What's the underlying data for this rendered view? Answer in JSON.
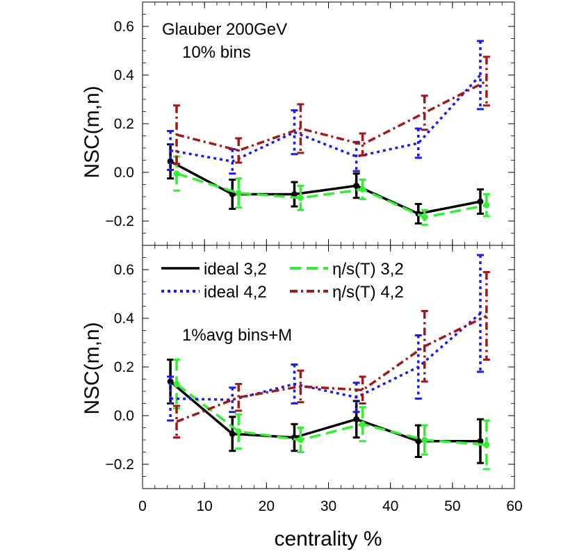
{
  "chart_data": [
    {
      "type": "line",
      "panel": "top",
      "annotation_lines": [
        "Glauber 200GeV",
        "10% bins"
      ],
      "ylabel": "NSC(m,n)",
      "xlabel": "",
      "xlim": [
        0,
        60
      ],
      "ylim": [
        -0.3,
        0.7
      ],
      "xticks": [
        0,
        10,
        20,
        30,
        40,
        50,
        60
      ],
      "yticks": [
        -0.2,
        0.0,
        0.2,
        0.4,
        0.6
      ],
      "ytick_labels": [
        "−0.2",
        "0.0",
        "0.2",
        "0.4",
        "0.6"
      ],
      "series": [
        {
          "name": "ideal 3,2",
          "style": "solid",
          "color": "#000000",
          "marker": true,
          "x": [
            4.5,
            14.5,
            24.5,
            34.5,
            44.5,
            54.5
          ],
          "y": [
            0.045,
            -0.09,
            -0.09,
            -0.055,
            -0.17,
            -0.12
          ],
          "err": [
            0.07,
            0.06,
            0.05,
            0.05,
            0.04,
            0.05
          ]
        },
        {
          "name": "η/s(T) 3,2",
          "style": "dashed",
          "color": "#33ee33",
          "marker": true,
          "x": [
            5.5,
            15.5,
            25.5,
            35.5,
            45.5,
            55.5
          ],
          "y": [
            -0.005,
            -0.085,
            -0.105,
            -0.07,
            -0.185,
            -0.135
          ],
          "err": [
            0.07,
            0.06,
            0.05,
            0.04,
            0.03,
            0.045
          ]
        },
        {
          "name": "ideal 4,2",
          "style": "dotted",
          "color": "#1a1aee",
          "marker": false,
          "x": [
            4.5,
            14.5,
            24.5,
            34.5,
            44.5,
            54.5
          ],
          "y": [
            0.09,
            0.045,
            0.165,
            0.065,
            0.12,
            0.4
          ],
          "err": [
            0.08,
            0.05,
            0.09,
            0.06,
            0.06,
            0.14
          ]
        },
        {
          "name": "η/s(T) 4,2",
          "style": "dashdot",
          "color": "#a01818",
          "marker": false,
          "x": [
            5.5,
            15.5,
            25.5,
            35.5,
            45.5,
            55.5
          ],
          "y": [
            0.155,
            0.09,
            0.18,
            0.115,
            0.245,
            0.375
          ],
          "err": [
            0.12,
            0.05,
            0.1,
            0.045,
            0.07,
            0.1
          ]
        }
      ]
    },
    {
      "type": "line",
      "panel": "bottom",
      "annotation_lines": [
        "1%avg bins+M"
      ],
      "ylabel": "NSC(m,n)",
      "xlabel": "centrality %",
      "xlim": [
        0,
        60
      ],
      "ylim": [
        -0.3,
        0.7
      ],
      "xticks": [
        0,
        10,
        20,
        30,
        40,
        50,
        60
      ],
      "xtick_labels": [
        "0",
        "10",
        "20",
        "30",
        "40",
        "50",
        "60"
      ],
      "yticks": [
        -0.2,
        0.0,
        0.2,
        0.4,
        0.6
      ],
      "ytick_labels": [
        "−0.2",
        "0.0",
        "0.2",
        "0.4",
        "0.6"
      ],
      "legend": [
        "ideal 3,2",
        "ideal 4,2",
        "η/s(T) 3,2",
        "η/s(T) 4,2"
      ],
      "series": [
        {
          "name": "ideal 3,2",
          "style": "solid",
          "color": "#000000",
          "marker": true,
          "x": [
            4.5,
            14.5,
            24.5,
            34.5,
            44.5,
            54.5
          ],
          "y": [
            0.14,
            -0.075,
            -0.09,
            -0.015,
            -0.105,
            -0.105
          ],
          "err": [
            0.09,
            0.07,
            0.055,
            0.075,
            0.065,
            0.09
          ]
        },
        {
          "name": "η/s(T) 3,2",
          "style": "dashed",
          "color": "#33ee33",
          "marker": true,
          "x": [
            5.5,
            15.5,
            25.5,
            35.5,
            45.5,
            55.5
          ],
          "y": [
            0.13,
            -0.065,
            -0.1,
            -0.035,
            -0.1,
            -0.12
          ],
          "err": [
            0.1,
            0.07,
            0.05,
            0.07,
            0.06,
            0.1
          ]
        },
        {
          "name": "ideal 4,2",
          "style": "dotted",
          "color": "#1a1aee",
          "marker": false,
          "x": [
            4.5,
            14.5,
            24.5,
            34.5,
            44.5,
            54.5
          ],
          "y": [
            0.07,
            0.065,
            0.13,
            0.075,
            0.2,
            0.42
          ],
          "err": [
            0.09,
            0.05,
            0.08,
            0.06,
            0.13,
            0.24
          ]
        },
        {
          "name": "η/s(T) 4,2",
          "style": "dashdot",
          "color": "#a01818",
          "marker": false,
          "x": [
            5.5,
            15.5,
            25.5,
            35.5,
            45.5,
            55.5
          ],
          "y": [
            -0.025,
            0.075,
            0.12,
            0.105,
            0.285,
            0.41
          ],
          "err": [
            0.065,
            0.055,
            0.065,
            0.055,
            0.145,
            0.18
          ]
        }
      ]
    }
  ]
}
